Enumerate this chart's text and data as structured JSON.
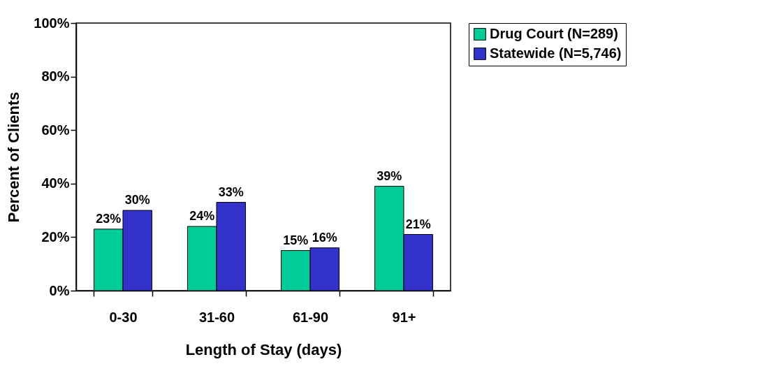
{
  "chart_data": {
    "type": "bar",
    "xlabel": "Length of Stay (days)",
    "ylabel": "Percent of Clients",
    "categories": [
      "0-30",
      "31-60",
      "61-90",
      "91+"
    ],
    "series": [
      {
        "name": "Drug Court (N=289)",
        "color": "#00cc99",
        "values": [
          23,
          24,
          15,
          39
        ],
        "value_labels": [
          "23%",
          "24%",
          "15%",
          "39%"
        ]
      },
      {
        "name": "Statewide (N=5,746)",
        "color": "#3333cc",
        "values": [
          30,
          33,
          16,
          21
        ],
        "value_labels": [
          "30%",
          "33%",
          "16%",
          "21%"
        ]
      }
    ],
    "ylim": [
      0,
      100
    ],
    "yticks": [
      {
        "value": 0,
        "label": "0%"
      },
      {
        "value": 20,
        "label": "20%"
      },
      {
        "value": 40,
        "label": "40%"
      },
      {
        "value": 60,
        "label": "60%"
      },
      {
        "value": 80,
        "label": "80%"
      },
      {
        "value": 100,
        "label": "100%"
      }
    ],
    "grid": false,
    "legend": "right"
  }
}
